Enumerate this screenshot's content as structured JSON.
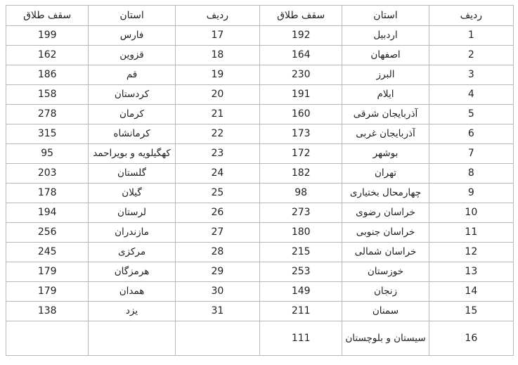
{
  "headers": {
    "row": "ردیف",
    "province": "استان",
    "limit": "سقف طلاق"
  },
  "rows": [
    {
      "r1": "1",
      "p1": "اردبیل",
      "l1": "192",
      "r2": "17",
      "p2": "فارس",
      "l2": "199"
    },
    {
      "r1": "2",
      "p1": "اصفهان",
      "l1": "164",
      "r2": "18",
      "p2": "قزوین",
      "l2": "162"
    },
    {
      "r1": "3",
      "p1": "البرز",
      "l1": "230",
      "r2": "19",
      "p2": "قم",
      "l2": "186"
    },
    {
      "r1": "4",
      "p1": "ایلام",
      "l1": "191",
      "r2": "20",
      "p2": "کردستان",
      "l2": "158"
    },
    {
      "r1": "5",
      "p1": "آذربایجان شرقی",
      "l1": "160",
      "r2": "21",
      "p2": "کرمان",
      "l2": "278"
    },
    {
      "r1": "6",
      "p1": "آذربایجان غربی",
      "l1": "173",
      "r2": "22",
      "p2": "کرمانشاه",
      "l2": "315"
    },
    {
      "r1": "7",
      "p1": "بوشهر",
      "l1": "172",
      "r2": "23",
      "p2": "کهگیلویه و بویراحمد",
      "l2": "95"
    },
    {
      "r1": "8",
      "p1": "تهران",
      "l1": "182",
      "r2": "24",
      "p2": "گلستان",
      "l2": "203"
    },
    {
      "r1": "9",
      "p1": "چهارمحال بختیاری",
      "l1": "98",
      "r2": "25",
      "p2": "گیلان",
      "l2": "178"
    },
    {
      "r1": "10",
      "p1": "خراسان رضوی",
      "l1": "273",
      "r2": "26",
      "p2": "لرستان",
      "l2": "194"
    },
    {
      "r1": "11",
      "p1": "خراسان جنوبی",
      "l1": "180",
      "r2": "27",
      "p2": "مازندران",
      "l2": "256"
    },
    {
      "r1": "12",
      "p1": "خراسان شمالی",
      "l1": "215",
      "r2": "28",
      "p2": "مرکزی",
      "l2": "245"
    },
    {
      "r1": "13",
      "p1": "خوزستان",
      "l1": "253",
      "r2": "29",
      "p2": "هرمزگان",
      "l2": "179"
    },
    {
      "r1": "14",
      "p1": "زنجان",
      "l1": "149",
      "r2": "30",
      "p2": "همدان",
      "l2": "179"
    },
    {
      "r1": "15",
      "p1": "سمنان",
      "l1": "211",
      "r2": "31",
      "p2": "یزد",
      "l2": "138"
    },
    {
      "r1": "16",
      "p1": "سیستان و بلوچستان",
      "l1": "111",
      "r2": "",
      "p2": "",
      "l2": ""
    }
  ]
}
